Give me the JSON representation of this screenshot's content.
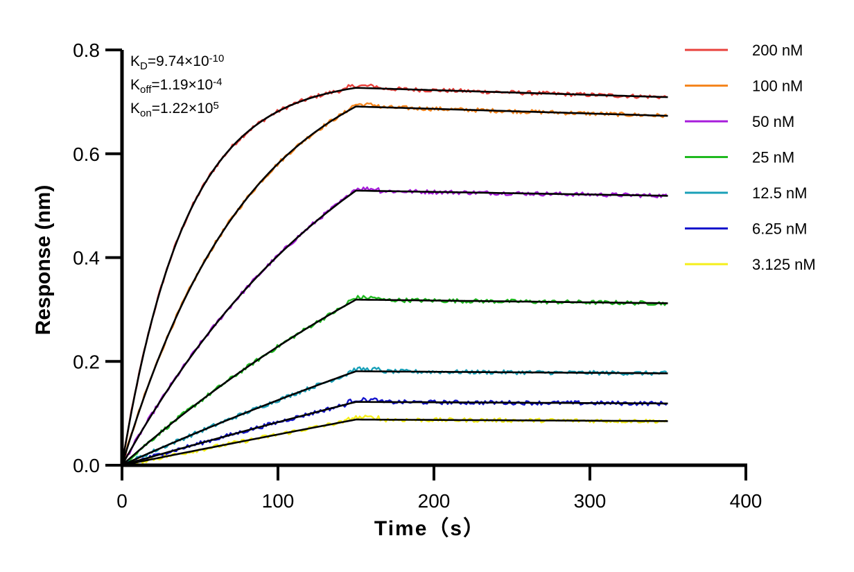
{
  "chart_data": {
    "type": "line",
    "xlabel": "Time（s）",
    "ylabel": "Response (nm)",
    "xlim": [
      0,
      400
    ],
    "ylim": [
      0,
      0.8
    ],
    "xticks": [
      "0",
      "100",
      "200",
      "300",
      "400"
    ],
    "yticks": [
      "0.0",
      "0.2",
      "0.4",
      "0.6",
      "0.8"
    ],
    "grid": false,
    "legend_position": "top-right",
    "association_end": 150,
    "dissociation_end": 350,
    "annotation": [
      {
        "base": "K",
        "sub": "D",
        "eq": "=9.74×10",
        "sup": "-10"
      },
      {
        "base": "K",
        "sub": "off",
        "eq": "=1.19×10",
        "sup": "-4"
      },
      {
        "base": "K",
        "sub": "on",
        "eq": "=1.22×10",
        "sup": "5"
      }
    ],
    "series": [
      {
        "name": "200 nM",
        "color": "#e8413c",
        "peak": 0.727,
        "end": 0.709,
        "k_obs": 0.0245,
        "noise": 0.004
      },
      {
        "name": "100 nM",
        "color": "#f5861f",
        "peak": 0.691,
        "end": 0.673,
        "k_obs": 0.0123,
        "noise": 0.004
      },
      {
        "name": "50 nM",
        "color": "#a71ddb",
        "peak": 0.529,
        "end": 0.519,
        "k_obs": 0.0062,
        "noise": 0.004
      },
      {
        "name": "25 nM",
        "color": "#1fb91f",
        "peak": 0.319,
        "end": 0.312,
        "k_obs": 0.0031,
        "noise": 0.004
      },
      {
        "name": "12.5 nM",
        "color": "#1aa0b8",
        "peak": 0.181,
        "end": 0.177,
        "k_obs": 0.0016,
        "noise": 0.004
      },
      {
        "name": "6.25 nM",
        "color": "#1414cc",
        "peak": 0.122,
        "end": 0.119,
        "k_obs": 0.0008,
        "noise": 0.004
      },
      {
        "name": "3.125 nM",
        "color": "#f5ef1a",
        "peak": 0.088,
        "end": 0.085,
        "k_obs": 0.0004,
        "noise": 0.004
      }
    ]
  }
}
